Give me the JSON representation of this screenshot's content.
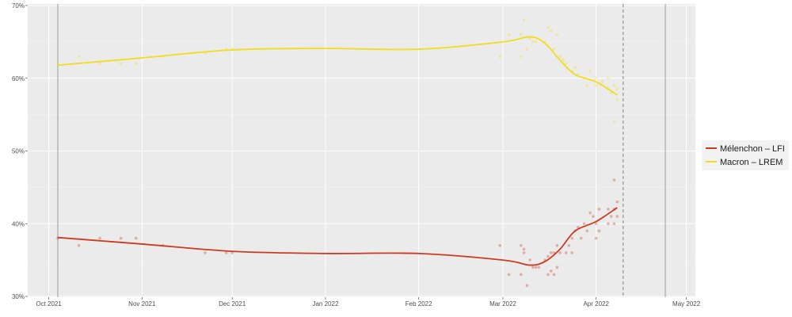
{
  "chart_data": {
    "type": "line",
    "title": "",
    "xlabel": "",
    "ylabel": "",
    "xlim": [
      "2021-09-24",
      "2022-05-04"
    ],
    "ylim": [
      30,
      70
    ],
    "y_ticks": [
      30,
      40,
      50,
      60,
      70
    ],
    "y_tick_labels": [
      "30%",
      "40%",
      "50%",
      "60%",
      "70%"
    ],
    "x_ticks": [
      "2021-10-01",
      "2021-11-01",
      "2021-12-01",
      "2022-01-01",
      "2022-02-01",
      "2022-03-01",
      "2022-04-01",
      "2022-05-01"
    ],
    "x_tick_labels": [
      "Oct 2021",
      "Nov 2021",
      "Dec 2021",
      "Jan 2022",
      "Feb 2022",
      "Mar 2022",
      "Apr 2022",
      "May 2022"
    ],
    "grid": true,
    "legend_position": "right",
    "vertical_lines": [
      {
        "date": "2021-10-04",
        "style": "solid"
      },
      {
        "date": "2022-04-10",
        "style": "dashed"
      },
      {
        "date": "2022-04-24",
        "style": "solid"
      }
    ],
    "series": [
      {
        "name": "Mélenchon – LFI",
        "color": "#cc3a1f",
        "smooth": [
          [
            "2021-10-04",
            38.1
          ],
          [
            "2021-11-01",
            37.2
          ],
          [
            "2021-12-01",
            36.2
          ],
          [
            "2022-01-01",
            35.9
          ],
          [
            "2022-02-01",
            35.9
          ],
          [
            "2022-03-01",
            35.0
          ],
          [
            "2022-03-10",
            34.3
          ],
          [
            "2022-03-15",
            34.8
          ],
          [
            "2022-03-20",
            36.5
          ],
          [
            "2022-03-25",
            39.0
          ],
          [
            "2022-04-01",
            40.3
          ],
          [
            "2022-04-08",
            42.2
          ]
        ],
        "points": [
          [
            "2021-10-04",
            38
          ],
          [
            "2021-10-11",
            37
          ],
          [
            "2021-10-18",
            38
          ],
          [
            "2021-10-25",
            38
          ],
          [
            "2021-10-30",
            38
          ],
          [
            "2021-11-08",
            37
          ],
          [
            "2021-11-22",
            36
          ],
          [
            "2021-11-29",
            36
          ],
          [
            "2021-12-01",
            36
          ],
          [
            "2022-02-28",
            37
          ],
          [
            "2022-03-03",
            33
          ],
          [
            "2022-03-07",
            37
          ],
          [
            "2022-03-07",
            33
          ],
          [
            "2022-03-08",
            36.5
          ],
          [
            "2022-03-09",
            31.5
          ],
          [
            "2022-03-08",
            36
          ],
          [
            "2022-03-10",
            35
          ],
          [
            "2022-03-11",
            34
          ],
          [
            "2022-03-12",
            34
          ],
          [
            "2022-03-13",
            34
          ],
          [
            "2022-03-15",
            35
          ],
          [
            "2022-03-16",
            35.5
          ],
          [
            "2022-03-16",
            33
          ],
          [
            "2022-03-17",
            36
          ],
          [
            "2022-03-17",
            33.5
          ],
          [
            "2022-03-18",
            36
          ],
          [
            "2022-03-18",
            33
          ],
          [
            "2022-03-19",
            37
          ],
          [
            "2022-03-19",
            34
          ],
          [
            "2022-03-20",
            36
          ],
          [
            "2022-03-22",
            36
          ],
          [
            "2022-03-23",
            37
          ],
          [
            "2022-03-24",
            36
          ],
          [
            "2022-03-24",
            38
          ],
          [
            "2022-03-25",
            39
          ],
          [
            "2022-03-26",
            39.5
          ],
          [
            "2022-03-27",
            38
          ],
          [
            "2022-03-28",
            40
          ],
          [
            "2022-03-29",
            39
          ],
          [
            "2022-03-30",
            41.5
          ],
          [
            "2022-03-31",
            41
          ],
          [
            "2022-04-01",
            40
          ],
          [
            "2022-04-01",
            38
          ],
          [
            "2022-04-02",
            42
          ],
          [
            "2022-04-02",
            39
          ],
          [
            "2022-04-05",
            42
          ],
          [
            "2022-04-05",
            40
          ],
          [
            "2022-04-06",
            41
          ],
          [
            "2022-04-07",
            40
          ],
          [
            "2022-04-07",
            46
          ],
          [
            "2022-04-07",
            42
          ],
          [
            "2022-04-08",
            43
          ],
          [
            "2022-04-08",
            41
          ]
        ]
      },
      {
        "name": "Macron – LREM",
        "color": "#f2dc1b",
        "smooth": [
          [
            "2021-10-04",
            61.8
          ],
          [
            "2021-11-01",
            62.8
          ],
          [
            "2021-12-01",
            63.9
          ],
          [
            "2022-01-01",
            64.1
          ],
          [
            "2022-02-01",
            64.0
          ],
          [
            "2022-03-01",
            65.0
          ],
          [
            "2022-03-10",
            65.7
          ],
          [
            "2022-03-15",
            64.8
          ],
          [
            "2022-03-20",
            62.5
          ],
          [
            "2022-03-25",
            60.5
          ],
          [
            "2022-04-01",
            59.5
          ],
          [
            "2022-04-08",
            57.7
          ]
        ],
        "points": [
          [
            "2021-10-04",
            62
          ],
          [
            "2021-10-11",
            63
          ],
          [
            "2021-10-18",
            62
          ],
          [
            "2021-10-25",
            62
          ],
          [
            "2021-10-30",
            62
          ],
          [
            "2021-11-08",
            63
          ],
          [
            "2021-11-22",
            63.5
          ],
          [
            "2021-11-29",
            64
          ],
          [
            "2021-12-01",
            64
          ],
          [
            "2022-02-28",
            63
          ],
          [
            "2022-03-03",
            66
          ],
          [
            "2022-03-07",
            66
          ],
          [
            "2022-03-07",
            63
          ],
          [
            "2022-03-08",
            68
          ],
          [
            "2022-03-09",
            64
          ],
          [
            "2022-03-10",
            65.5
          ],
          [
            "2022-03-11",
            65
          ],
          [
            "2022-03-12",
            65
          ],
          [
            "2022-03-15",
            65
          ],
          [
            "2022-03-16",
            67
          ],
          [
            "2022-03-17",
            66.5
          ],
          [
            "2022-03-18",
            64
          ],
          [
            "2022-03-19",
            66
          ],
          [
            "2022-03-20",
            63
          ],
          [
            "2022-03-21",
            62.5
          ],
          [
            "2022-03-22",
            62
          ],
          [
            "2022-03-24",
            61
          ],
          [
            "2022-03-25",
            61.5
          ],
          [
            "2022-03-26",
            60.5
          ],
          [
            "2022-03-28",
            60
          ],
          [
            "2022-03-29",
            59
          ],
          [
            "2022-03-30",
            61
          ],
          [
            "2022-04-01",
            60
          ],
          [
            "2022-04-01",
            59
          ],
          [
            "2022-04-03",
            59.5
          ],
          [
            "2022-04-05",
            58.5
          ],
          [
            "2022-04-05",
            60
          ],
          [
            "2022-04-06",
            58
          ],
          [
            "2022-04-07",
            54
          ],
          [
            "2022-04-07",
            59
          ],
          [
            "2022-04-08",
            58.5
          ],
          [
            "2022-04-08",
            57
          ]
        ]
      }
    ]
  }
}
